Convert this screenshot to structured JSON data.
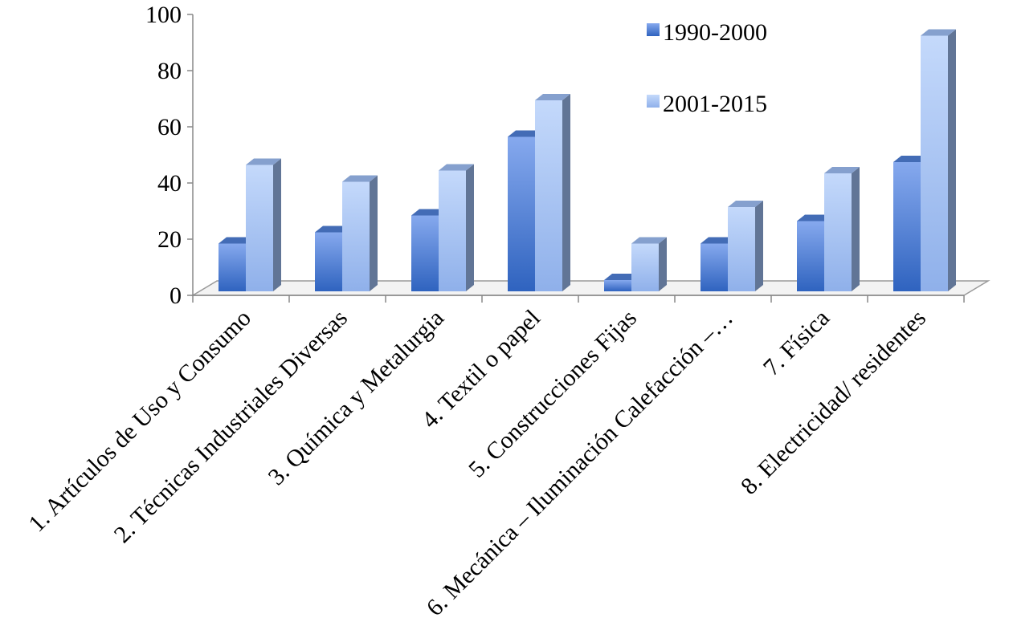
{
  "chart_data": {
    "type": "bar",
    "style": "3d-clustered-column",
    "categories": [
      "1. Artículos de Uso y Consumo",
      "2. Técnicas Industriales Diversas",
      "3. Química y Metalurgia",
      "4. Textil o papel",
      "5. Construcciones Fijas",
      "6. Mecánica – Iluminación Calefacción –…",
      "7. Física",
      "8. Electricidad/ residentes"
    ],
    "series": [
      {
        "name": "1990-2000",
        "values": [
          17,
          21,
          27,
          55,
          4,
          17,
          25,
          46
        ],
        "color": "#4f7fd6"
      },
      {
        "name": "2001-2015",
        "values": [
          45,
          39,
          43,
          68,
          17,
          30,
          42,
          91
        ],
        "color": "#9dbcf2"
      }
    ],
    "ylim": [
      0,
      100
    ],
    "yticks": [
      "0",
      "20",
      "40",
      "60",
      "80",
      "100"
    ],
    "title": "",
    "xlabel": "",
    "ylabel": "",
    "grid": false,
    "legend_position": "top-right"
  }
}
